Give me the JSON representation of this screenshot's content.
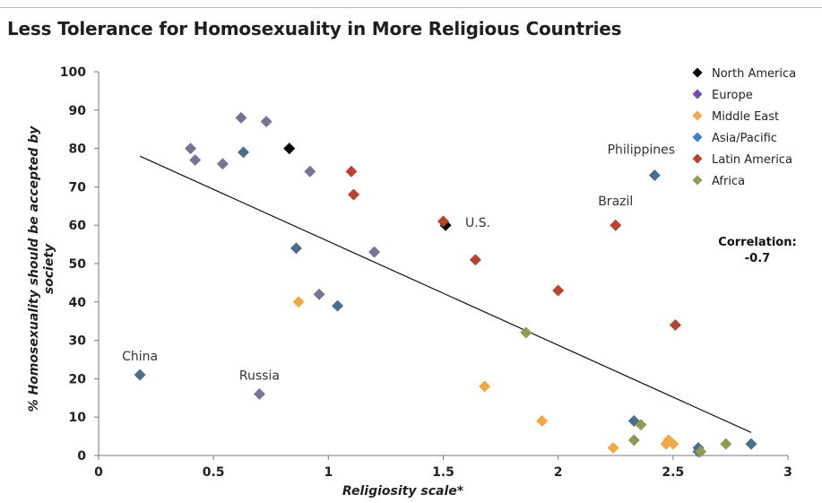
{
  "chart_data": {
    "type": "scatter",
    "title": "Less Tolerance for Homosexuality in More Religious Countries",
    "xlabel": "Religiosity scale*",
    "ylabel": [
      "% Homosexuality should be accepted by",
      "society"
    ],
    "xlim": [
      0,
      3
    ],
    "ylim": [
      0,
      100
    ],
    "x_ticks": [
      "0",
      "0.5",
      "1",
      "1.5",
      "2",
      "2.5",
      "3"
    ],
    "x_tick_values": [
      0,
      0.5,
      1,
      1.5,
      2,
      2.5,
      3
    ],
    "y_ticks": [
      "0",
      "10",
      "20",
      "30",
      "40",
      "50",
      "60",
      "70",
      "80",
      "90",
      "100"
    ],
    "y_tick_values": [
      0,
      10,
      20,
      30,
      40,
      50,
      60,
      70,
      80,
      90,
      100
    ],
    "legend_position": "top-right",
    "series": [
      {
        "name": "North America",
        "color": "#000000",
        "points": [
          [
            0.83,
            80
          ],
          [
            1.51,
            60
          ]
        ]
      },
      {
        "name": "Europe",
        "color": "#7b7396",
        "points": [
          [
            0.62,
            88
          ],
          [
            0.73,
            87
          ],
          [
            0.4,
            80
          ],
          [
            0.42,
            77
          ],
          [
            0.54,
            76
          ],
          [
            0.92,
            74
          ],
          [
            1.2,
            53
          ],
          [
            0.96,
            42
          ],
          [
            0.7,
            16
          ]
        ]
      },
      {
        "name": "Middle East",
        "color": "#f0a848",
        "points": [
          [
            0.87,
            40
          ],
          [
            1.68,
            18
          ],
          [
            1.93,
            9
          ],
          [
            2.24,
            2
          ],
          [
            2.47,
            3
          ],
          [
            2.5,
            3
          ],
          [
            2.48,
            4
          ]
        ]
      },
      {
        "name": "Asia/Pacific",
        "color": "#4a6e8c",
        "points": [
          [
            0.63,
            79
          ],
          [
            2.42,
            73
          ],
          [
            0.86,
            54
          ],
          [
            1.04,
            39
          ],
          [
            0.18,
            21
          ],
          [
            2.33,
            9
          ],
          [
            2.61,
            2
          ],
          [
            2.61,
            1
          ],
          [
            2.84,
            3
          ]
        ]
      },
      {
        "name": "Latin America",
        "color": "#b5452e",
        "points": [
          [
            1.1,
            74
          ],
          [
            1.11,
            68
          ],
          [
            1.5,
            61
          ],
          [
            1.64,
            51
          ],
          [
            2.25,
            60
          ],
          [
            2.0,
            43
          ],
          [
            2.51,
            34
          ]
        ]
      },
      {
        "name": "Africa",
        "color": "#8f9a55",
        "points": [
          [
            1.86,
            32
          ],
          [
            2.36,
            8
          ],
          [
            2.33,
            4
          ],
          [
            2.73,
            3
          ],
          [
            2.62,
            1
          ]
        ]
      }
    ],
    "legend_marker_colors": [
      "#000000",
      "#6a4fa6",
      "#f0a848",
      "#3b7fbf",
      "#b5452e",
      "#8f9a55"
    ],
    "trendline": {
      "x": [
        0.18,
        2.84
      ],
      "y": [
        78,
        6
      ]
    },
    "annotations": [
      {
        "text": "China",
        "x": 0.18,
        "y": 21
      },
      {
        "text": "Russia",
        "x": 0.7,
        "y": 16
      },
      {
        "text": "U.S.",
        "x": 1.51,
        "y": 60
      },
      {
        "text": "Brazil",
        "x": 2.25,
        "y": 60
      },
      {
        "text": "Philippines",
        "x": 2.42,
        "y": 73
      }
    ],
    "correlation": [
      "Correlation:",
      "-0.7"
    ],
    "grid": false
  }
}
